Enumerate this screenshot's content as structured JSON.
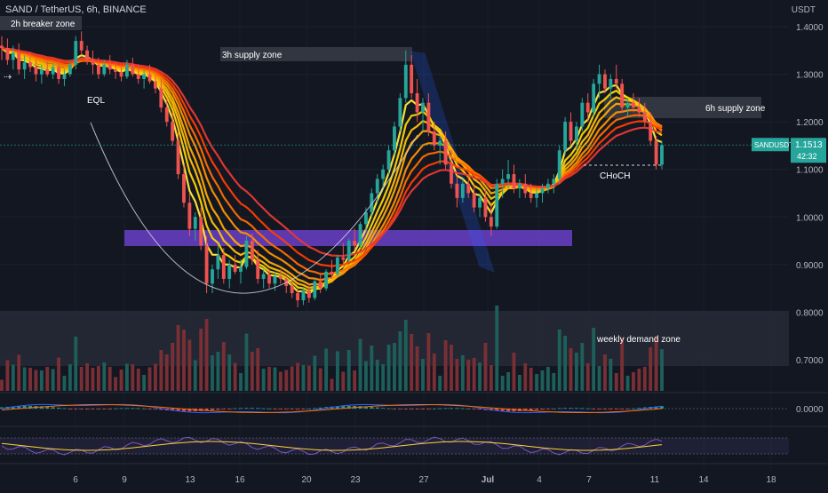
{
  "header": {
    "symbol_line": "SAND / TetherUS, 6h, BINANCE",
    "unit": "USDT"
  },
  "chart_data": {
    "type": "candlestick",
    "y_ticks": [
      "1.4000",
      "1.3000",
      "1.2000",
      "1.1000",
      "1.0000",
      "0.9000",
      "0.8000",
      "0.7000"
    ],
    "ylim": [
      0.64,
      1.42
    ],
    "x_ticks": [
      "6",
      "9",
      "13",
      "16",
      "20",
      "23",
      "27",
      "Jul",
      "4",
      "7",
      "11",
      "14",
      "18"
    ],
    "price_label": {
      "symbol": "SANDUSDT",
      "price": "1.1513",
      "countdown": "42:32"
    },
    "macd_label": "0.0000",
    "annotations": {
      "breaker": "2h breaker zone",
      "supply3h": "3h supply zone",
      "eql": "EQL",
      "supply6h": "6h supply zone",
      "choch": "CHoCH",
      "demand": "weekly demand zone"
    },
    "ohlc": [
      [
        1.36,
        1.38,
        1.33,
        1.355
      ],
      [
        1.355,
        1.375,
        1.32,
        1.33
      ],
      [
        1.33,
        1.36,
        1.31,
        1.345
      ],
      [
        1.345,
        1.365,
        1.3,
        1.31
      ],
      [
        1.31,
        1.34,
        1.29,
        1.325
      ],
      [
        1.325,
        1.345,
        1.305,
        1.315
      ],
      [
        1.315,
        1.33,
        1.285,
        1.3
      ],
      [
        1.3,
        1.32,
        1.28,
        1.31
      ],
      [
        1.31,
        1.33,
        1.295,
        1.3
      ],
      [
        1.3,
        1.325,
        1.29,
        1.315
      ],
      [
        1.315,
        1.33,
        1.28,
        1.29
      ],
      [
        1.29,
        1.31,
        1.275,
        1.3
      ],
      [
        1.3,
        1.33,
        1.295,
        1.32
      ],
      [
        1.32,
        1.38,
        1.31,
        1.37
      ],
      [
        1.37,
        1.39,
        1.34,
        1.35
      ],
      [
        1.35,
        1.36,
        1.32,
        1.33
      ],
      [
        1.33,
        1.35,
        1.3,
        1.32
      ],
      [
        1.32,
        1.335,
        1.29,
        1.3
      ],
      [
        1.3,
        1.33,
        1.295,
        1.32
      ],
      [
        1.32,
        1.34,
        1.3,
        1.31
      ],
      [
        1.31,
        1.325,
        1.29,
        1.305
      ],
      [
        1.305,
        1.32,
        1.285,
        1.295
      ],
      [
        1.295,
        1.33,
        1.29,
        1.32
      ],
      [
        1.32,
        1.335,
        1.295,
        1.3
      ],
      [
        1.3,
        1.32,
        1.28,
        1.29
      ],
      [
        1.29,
        1.31,
        1.27,
        1.3
      ],
      [
        1.3,
        1.32,
        1.28,
        1.285
      ],
      [
        1.285,
        1.3,
        1.26,
        1.27
      ],
      [
        1.27,
        1.29,
        1.22,
        1.23
      ],
      [
        1.23,
        1.25,
        1.19,
        1.2
      ],
      [
        1.2,
        1.22,
        1.15,
        1.16
      ],
      [
        1.16,
        1.18,
        1.08,
        1.09
      ],
      [
        1.09,
        1.11,
        1.02,
        1.03
      ],
      [
        1.03,
        1.05,
        0.96,
        0.975
      ],
      [
        0.975,
        1.01,
        0.95,
        1.0
      ],
      [
        1.0,
        1.02,
        0.93,
        0.94
      ],
      [
        0.94,
        0.96,
        0.84,
        0.86
      ],
      [
        0.86,
        0.9,
        0.84,
        0.89
      ],
      [
        0.89,
        0.94,
        0.87,
        0.92
      ],
      [
        0.92,
        0.935,
        0.86,
        0.87
      ],
      [
        0.87,
        0.91,
        0.85,
        0.9
      ],
      [
        0.9,
        0.92,
        0.88,
        0.885
      ],
      [
        0.885,
        0.91,
        0.86,
        0.895
      ],
      [
        0.895,
        0.96,
        0.89,
        0.95
      ],
      [
        0.95,
        0.965,
        0.9,
        0.91
      ],
      [
        0.91,
        0.93,
        0.86,
        0.87
      ],
      [
        0.87,
        0.89,
        0.85,
        0.88
      ],
      [
        0.88,
        0.89,
        0.85,
        0.86
      ],
      [
        0.86,
        0.885,
        0.845,
        0.875
      ],
      [
        0.875,
        0.89,
        0.86,
        0.87
      ],
      [
        0.87,
        0.88,
        0.84,
        0.855
      ],
      [
        0.855,
        0.87,
        0.83,
        0.84
      ],
      [
        0.84,
        0.85,
        0.81,
        0.825
      ],
      [
        0.825,
        0.85,
        0.815,
        0.845
      ],
      [
        0.845,
        0.86,
        0.82,
        0.83
      ],
      [
        0.83,
        0.87,
        0.825,
        0.865
      ],
      [
        0.865,
        0.88,
        0.84,
        0.85
      ],
      [
        0.85,
        0.89,
        0.845,
        0.885
      ],
      [
        0.885,
        0.91,
        0.87,
        0.88
      ],
      [
        0.88,
        0.92,
        0.875,
        0.915
      ],
      [
        0.915,
        0.945,
        0.9,
        0.91
      ],
      [
        0.91,
        0.955,
        0.905,
        0.95
      ],
      [
        0.95,
        0.975,
        0.93,
        0.94
      ],
      [
        0.94,
        0.99,
        0.935,
        0.985
      ],
      [
        0.985,
        1.02,
        0.97,
        1.01
      ],
      [
        1.01,
        1.06,
        1.0,
        1.05
      ],
      [
        1.05,
        1.09,
        1.03,
        1.08
      ],
      [
        1.08,
        1.11,
        1.06,
        1.1
      ],
      [
        1.1,
        1.15,
        1.09,
        1.14
      ],
      [
        1.14,
        1.2,
        1.13,
        1.19
      ],
      [
        1.19,
        1.26,
        1.18,
        1.25
      ],
      [
        1.25,
        1.35,
        1.24,
        1.32
      ],
      [
        1.32,
        1.34,
        1.25,
        1.26
      ],
      [
        1.26,
        1.29,
        1.2,
        1.22
      ],
      [
        1.22,
        1.25,
        1.18,
        1.24
      ],
      [
        1.24,
        1.26,
        1.17,
        1.18
      ],
      [
        1.18,
        1.2,
        1.14,
        1.15
      ],
      [
        1.15,
        1.17,
        1.11,
        1.16
      ],
      [
        1.16,
        1.18,
        1.1,
        1.11
      ],
      [
        1.11,
        1.14,
        1.06,
        1.07
      ],
      [
        1.07,
        1.09,
        1.02,
        1.04
      ],
      [
        1.04,
        1.08,
        1.03,
        1.07
      ],
      [
        1.07,
        1.09,
        1.04,
        1.05
      ],
      [
        1.05,
        1.07,
        1.01,
        1.02
      ],
      [
        1.02,
        1.05,
        1.0,
        1.04
      ],
      [
        1.04,
        1.06,
        0.99,
        1.0
      ],
      [
        1.0,
        1.03,
        0.96,
        0.98
      ],
      [
        0.98,
        1.08,
        0.975,
        1.07
      ],
      [
        1.07,
        1.1,
        1.04,
        1.08
      ],
      [
        1.08,
        1.12,
        1.06,
        1.09
      ],
      [
        1.09,
        1.11,
        1.05,
        1.06
      ],
      [
        1.06,
        1.08,
        1.04,
        1.07
      ],
      [
        1.07,
        1.09,
        1.04,
        1.05
      ],
      [
        1.05,
        1.07,
        1.03,
        1.04
      ],
      [
        1.04,
        1.06,
        1.02,
        1.05
      ],
      [
        1.05,
        1.07,
        1.03,
        1.06
      ],
      [
        1.06,
        1.08,
        1.05,
        1.07
      ],
      [
        1.07,
        1.09,
        1.05,
        1.08
      ],
      [
        1.08,
        1.15,
        1.07,
        1.14
      ],
      [
        1.14,
        1.21,
        1.13,
        1.2
      ],
      [
        1.2,
        1.22,
        1.15,
        1.16
      ],
      [
        1.16,
        1.2,
        1.14,
        1.19
      ],
      [
        1.19,
        1.25,
        1.18,
        1.24
      ],
      [
        1.24,
        1.26,
        1.2,
        1.22
      ],
      [
        1.22,
        1.29,
        1.21,
        1.28
      ],
      [
        1.28,
        1.32,
        1.25,
        1.3
      ],
      [
        1.3,
        1.31,
        1.26,
        1.27
      ],
      [
        1.27,
        1.3,
        1.25,
        1.29
      ],
      [
        1.29,
        1.32,
        1.27,
        1.28
      ],
      [
        1.28,
        1.29,
        1.22,
        1.23
      ],
      [
        1.23,
        1.25,
        1.21,
        1.24
      ],
      [
        1.24,
        1.26,
        1.22,
        1.23
      ],
      [
        1.23,
        1.25,
        1.21,
        1.22
      ],
      [
        1.22,
        1.24,
        1.19,
        1.2
      ],
      [
        1.2,
        1.22,
        1.15,
        1.16
      ],
      [
        1.16,
        1.17,
        1.1,
        1.11
      ],
      [
        1.11,
        1.16,
        1.1,
        1.151
      ]
    ]
  }
}
